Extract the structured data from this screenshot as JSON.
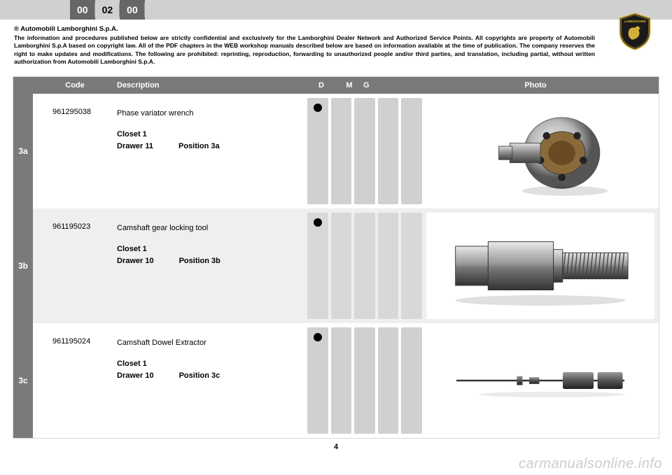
{
  "topbar": {
    "seg1": "00",
    "seg2": "02",
    "seg3": "00"
  },
  "copyright": {
    "company": "® Automobili Lamborghini S.p.A.",
    "text": "The information and procedures published below are strictly confidential and exclusively for the Lamborghini Dealer Network and Authorized Service Points. All copyrights are property of Automobili Lamborghini S.p.A based on copyright law. All of the PDF chapters in the WEB workshop manuals described below are based on information available at the time of publication. The company reserves the right to make updates and modifications. The following are prohibited: reprinting, reproduction, forwarding to unauthorized people and/or third parties, and translation, including partial, without written authorization from Automobili Lamborghini S.p.A."
  },
  "headers": {
    "code": "Code",
    "desc": "Description",
    "d": "D",
    "m": "M",
    "g": "G",
    "photo": "Photo"
  },
  "rows": [
    {
      "num": "3a",
      "alt": false,
      "code": "961295038",
      "desc": "Phase variator wrench",
      "closet": "Closet 1",
      "drawer": "Drawer 11",
      "position": "Position 3a",
      "dot_col": 0
    },
    {
      "num": "3b",
      "alt": true,
      "code": "961195023",
      "desc": "Camshaft gear locking tool",
      "closet": "Closet 1",
      "drawer": "Drawer 10",
      "position": "Position 3b",
      "dot_col": 0
    },
    {
      "num": "3c",
      "alt": false,
      "code": "961195024",
      "desc": "Camshaft Dowel Extractor",
      "closet": "Closet 1",
      "drawer": "Drawer 10",
      "position": "Position 3c",
      "dot_col": 0
    }
  ],
  "page_num": "4",
  "watermark": "carmanualsonline.info",
  "colors": {
    "topbar_bg": "#d0d0d0",
    "dark_seg_bg": "#666666",
    "header_bg": "#7a7a7a",
    "alt_row_bg": "#efefef",
    "pill_bg": "#d0d0d0",
    "dot": "#000000",
    "watermark": "#cccccc"
  }
}
